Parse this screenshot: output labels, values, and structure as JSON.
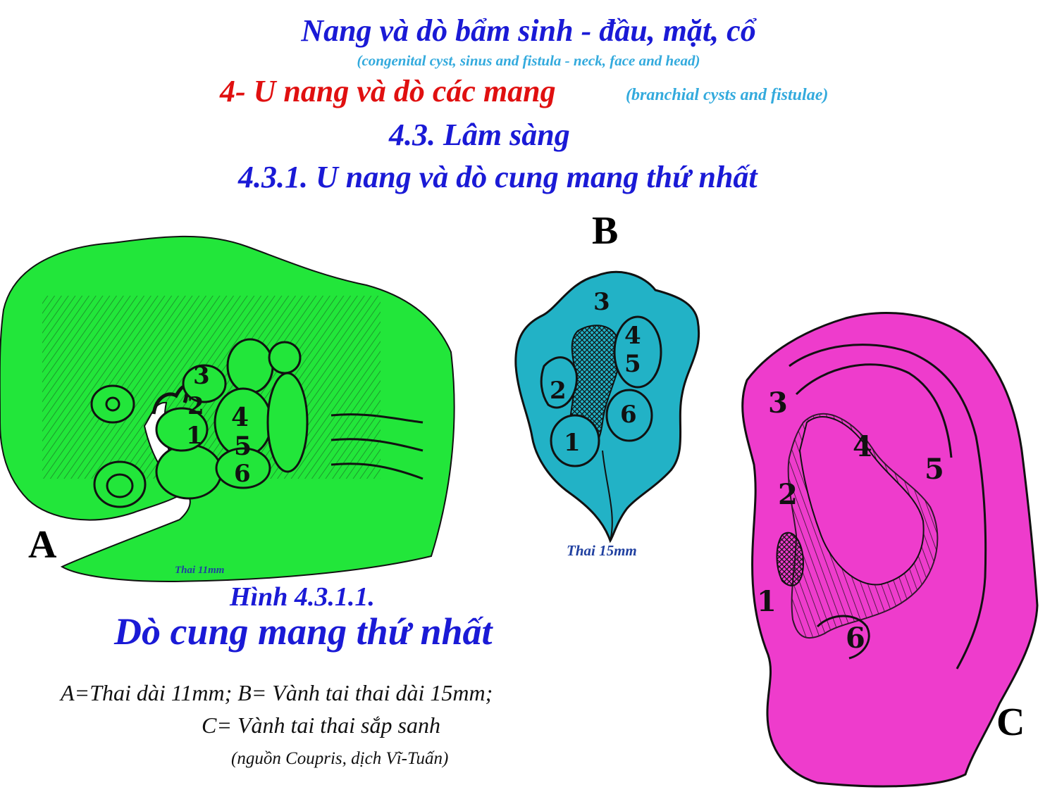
{
  "title": "Nang và dò bẩm sinh - đầu, mặt, cổ",
  "title_en": "(congenital cyst, sinus and fistula - neck, face and head)",
  "section": "4- U nang và dò các mang",
  "section_en": "(branchial cysts and fistulae)",
  "clinical": "4.3. Lâm sàng",
  "subsection": "4.3.1. U nang và dò cung mang thứ nhất",
  "figure": {
    "label_a": "A",
    "label_b": "B",
    "label_c": "C",
    "thai_a": "Thai 11mm",
    "thai_b": "Thai 15mm",
    "number": "Hình 4.3.1.1.",
    "name": "Dò cung mang thứ nhất",
    "caption_line1": "A=Thai dài 11mm;  B= Vành tai thai dài 15mm;",
    "caption_line2": "C= Vành tai thai sắp sanh",
    "source": "(nguồn Coupris, dịch Vĩ-Tuấn)"
  },
  "hillock_numbers": [
    "1",
    "2",
    "3",
    "4",
    "5",
    "6"
  ],
  "colors": {
    "embryo": "#22e63a",
    "fetal_ear": "#22b2c6",
    "newborn_ear": "#ee3ccc",
    "heading_blue": "#1a1ad6",
    "heading_red": "#e01010",
    "english_cyan": "#33aadd"
  }
}
